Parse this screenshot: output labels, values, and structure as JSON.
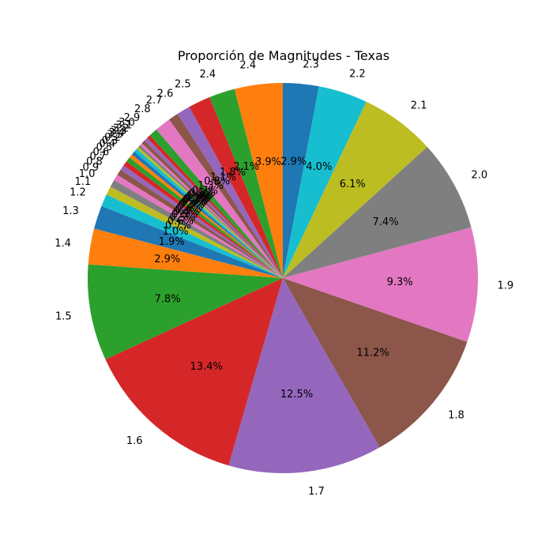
{
  "chart_data": {
    "type": "pie",
    "title": "Proporción de Magnitudes - Texas",
    "start_angle_deg": 90,
    "direction": "clockwise",
    "slices": [
      {
        "label": "2.3",
        "value": 2.9,
        "pct_label": "2.9%",
        "color": "#1f77b4"
      },
      {
        "label": "2.2",
        "value": 4.0,
        "pct_label": "4.0%",
        "color": "#17becf"
      },
      {
        "label": "2.1",
        "value": 6.1,
        "pct_label": "6.1%",
        "color": "#bcbd22"
      },
      {
        "label": "2.0",
        "value": 7.4,
        "pct_label": "7.4%",
        "color": "#7f7f7f"
      },
      {
        "label": "1.9",
        "value": 9.3,
        "pct_label": "9.3%",
        "color": "#e377c2"
      },
      {
        "label": "1.8",
        "value": 11.2,
        "pct_label": "11.2%",
        "color": "#8c564b"
      },
      {
        "label": "1.7",
        "value": 12.5,
        "pct_label": "12.5%",
        "color": "#9467bd"
      },
      {
        "label": "1.6",
        "value": 13.4,
        "pct_label": "13.4%",
        "color": "#d62728"
      },
      {
        "label": "1.5",
        "value": 7.8,
        "pct_label": "7.8%",
        "color": "#2ca02c"
      },
      {
        "label": "1.4",
        "value": 2.9,
        "pct_label": "2.9%",
        "color": "#ff7f0e"
      },
      {
        "label": "1.3",
        "value": 1.9,
        "pct_label": "1.9%",
        "color": "#1f77b4"
      },
      {
        "label": "1.2",
        "value": 1.0,
        "pct_label": "1.0%",
        "color": "#17becf"
      },
      {
        "label": "1.1",
        "value": 0.7,
        "pct_label": "0.7%",
        "color": "#bcbd22"
      },
      {
        "label": "1.0",
        "value": 0.6,
        "pct_label": "0.6%",
        "color": "#7f7f7f"
      },
      {
        "label": "0.9",
        "value": 0.5,
        "pct_label": "0.5%",
        "color": "#e377c2"
      },
      {
        "label": "0.8",
        "value": 0.5,
        "pct_label": "0.5%",
        "color": "#8c564b"
      },
      {
        "label": "0.7",
        "value": 0.4,
        "pct_label": "0.4%",
        "color": "#9467bd"
      },
      {
        "label": "0.6",
        "value": 0.4,
        "pct_label": "0.4%",
        "color": "#d62728"
      },
      {
        "label": "0.5",
        "value": 0.4,
        "pct_label": "0.4%",
        "color": "#2ca02c"
      },
      {
        "label": "0.4",
        "value": 0.3,
        "pct_label": "0.3%",
        "color": "#ff7f0e"
      },
      {
        "label": "0.3",
        "value": 0.3,
        "pct_label": "0.3%",
        "color": "#1f77b4"
      },
      {
        "label": "0.2",
        "value": 0.3,
        "pct_label": "0.3%",
        "color": "#17becf"
      },
      {
        "label": "3.5",
        "value": 0.2,
        "pct_label": "0.2%",
        "color": "#bcbd22"
      },
      {
        "label": "3.4",
        "value": 0.2,
        "pct_label": "0.2%",
        "color": "#7f7f7f"
      },
      {
        "label": "3.3",
        "value": 0.2,
        "pct_label": "0.2%",
        "color": "#e377c2"
      },
      {
        "label": "3.2",
        "value": 0.3,
        "pct_label": "0.3%",
        "color": "#8c564b"
      },
      {
        "label": "3.1",
        "value": 0.3,
        "pct_label": "0.3%",
        "color": "#9467bd"
      },
      {
        "label": "3.0",
        "value": 0.3,
        "pct_label": "0.3%",
        "color": "#d62728"
      },
      {
        "label": "2.9",
        "value": 0.7,
        "pct_label": "0.7%",
        "color": "#2ca02c"
      },
      {
        "label": "2.8",
        "value": 1.3,
        "pct_label": "1.3%",
        "color": "#e377c2"
      },
      {
        "label": "2.7",
        "value": 0.8,
        "pct_label": "0.8%",
        "color": "#8c564b"
      },
      {
        "label": "2.6",
        "value": 1.1,
        "pct_label": "1.1%",
        "color": "#9467bd"
      },
      {
        "label": "2.5",
        "value": 1.8,
        "pct_label": "1.8%",
        "color": "#d62728"
      },
      {
        "label": "2.4a",
        "value": 2.1,
        "pct_label": "2.1%",
        "color": "#2ca02c"
      },
      {
        "label": "2.4",
        "value": 3.9,
        "pct_label": "3.9%",
        "color": "#ff7f0e"
      }
    ]
  }
}
